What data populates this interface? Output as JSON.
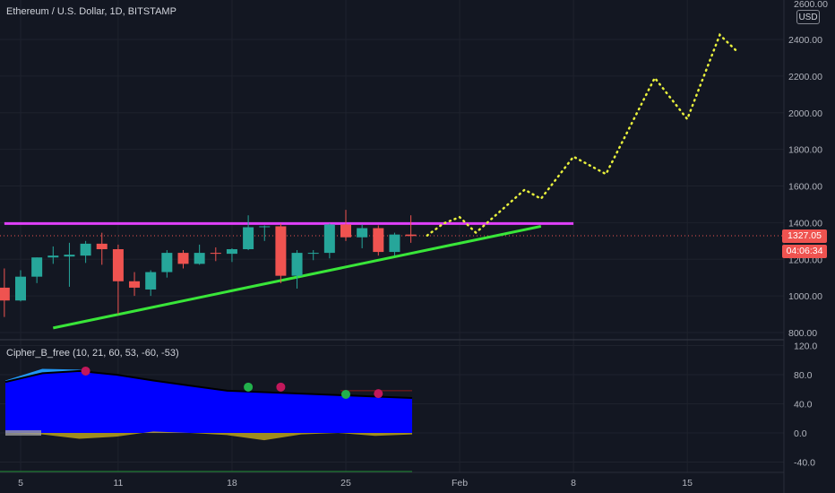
{
  "header": {
    "symbol_title": "Ethereum / U.S. Dollar, 1D, BITSTAMP",
    "currency_button": "USD",
    "top_partial_label": "2600.00"
  },
  "price_axis": {
    "ticks": [
      "2400.00",
      "2200.00",
      "2000.00",
      "1800.00",
      "1600.00",
      "1400.00",
      "1200.00",
      "1000.00",
      "800.00"
    ],
    "current_price": "1327.05",
    "countdown": "04:06:34"
  },
  "indicator": {
    "title": "Cipher_B_free (10, 21, 60, 53, -60, -53)",
    "ticks": [
      "120.0",
      "80.0",
      "40.0",
      "0.0",
      "-40.0"
    ]
  },
  "time_axis": {
    "ticks": [
      "5",
      "11",
      "18",
      "25",
      "Feb",
      "8",
      "15"
    ]
  },
  "colors": {
    "background": "#131722",
    "up_candle": "#26a69a",
    "down_candle": "#ef5350",
    "resistance_line": "#e040fb",
    "trend_line": "#39e639",
    "projection": "#e8f03c",
    "wave_blue": "#0000ff",
    "wave_light": "#2196f3",
    "dot_red": "#c2185b",
    "dot_green": "#22b14c"
  },
  "chart_data": {
    "type": "candlestick",
    "ylim": [
      780,
      2620
    ],
    "candles": [
      {
        "date": "Jan 4",
        "open": 1045,
        "high": 1150,
        "low": 885,
        "close": 975
      },
      {
        "date": "Jan 5",
        "open": 975,
        "high": 1140,
        "low": 970,
        "close": 1105
      },
      {
        "date": "Jan 6",
        "open": 1105,
        "high": 1210,
        "low": 1070,
        "close": 1210
      },
      {
        "date": "Jan 7",
        "open": 1210,
        "high": 1270,
        "low": 1175,
        "close": 1220
      },
      {
        "date": "Jan 8",
        "open": 1215,
        "high": 1290,
        "low": 1050,
        "close": 1225
      },
      {
        "date": "Jan 9",
        "open": 1220,
        "high": 1300,
        "low": 1180,
        "close": 1285
      },
      {
        "date": "Jan 10",
        "open": 1285,
        "high": 1345,
        "low": 1170,
        "close": 1255
      },
      {
        "date": "Jan 11",
        "open": 1255,
        "high": 1280,
        "low": 900,
        "close": 1080
      },
      {
        "date": "Jan 12",
        "open": 1080,
        "high": 1130,
        "low": 1000,
        "close": 1045
      },
      {
        "date": "Jan 13",
        "open": 1035,
        "high": 1140,
        "low": 1000,
        "close": 1130
      },
      {
        "date": "Jan 14",
        "open": 1130,
        "high": 1250,
        "low": 1100,
        "close": 1235
      },
      {
        "date": "Jan 15",
        "open": 1235,
        "high": 1250,
        "low": 1150,
        "close": 1175
      },
      {
        "date": "Jan 16",
        "open": 1175,
        "high": 1280,
        "low": 1170,
        "close": 1235
      },
      {
        "date": "Jan 17",
        "open": 1235,
        "high": 1265,
        "low": 1190,
        "close": 1230
      },
      {
        "date": "Jan 18",
        "open": 1230,
        "high": 1260,
        "low": 1185,
        "close": 1255
      },
      {
        "date": "Jan 19",
        "open": 1255,
        "high": 1440,
        "low": 1250,
        "close": 1375
      },
      {
        "date": "Jan 20",
        "open": 1375,
        "high": 1385,
        "low": 1300,
        "close": 1380
      },
      {
        "date": "Jan 21",
        "open": 1380,
        "high": 1395,
        "low": 1070,
        "close": 1110
      },
      {
        "date": "Jan 22",
        "open": 1110,
        "high": 1250,
        "low": 1040,
        "close": 1235
      },
      {
        "date": "Jan 23",
        "open": 1235,
        "high": 1250,
        "low": 1195,
        "close": 1235
      },
      {
        "date": "Jan 24",
        "open": 1235,
        "high": 1395,
        "low": 1205,
        "close": 1390
      },
      {
        "date": "Jan 25",
        "open": 1390,
        "high": 1470,
        "low": 1300,
        "close": 1320
      },
      {
        "date": "Jan 26",
        "open": 1320,
        "high": 1390,
        "low": 1260,
        "close": 1370
      },
      {
        "date": "Jan 27",
        "open": 1370,
        "high": 1385,
        "low": 1220,
        "close": 1240
      },
      {
        "date": "Jan 28",
        "open": 1240,
        "high": 1345,
        "low": 1220,
        "close": 1335
      },
      {
        "date": "Jan 29",
        "open": 1335,
        "high": 1440,
        "low": 1290,
        "close": 1327
      }
    ],
    "resistance": {
      "price": 1395,
      "from": "Jan 4",
      "to": "Feb 8"
    },
    "trendline": {
      "from_date": "Jan 7",
      "from_price": 825,
      "to_date": "Feb 6",
      "to_price": 1380
    },
    "projection": {
      "points": [
        {
          "date": "Jan 30",
          "price": 1330
        },
        {
          "date": "Jan 31",
          "price": 1395
        },
        {
          "date": "Feb 1",
          "price": 1430
        },
        {
          "date": "Feb 2",
          "price": 1345
        },
        {
          "date": "Feb 5",
          "price": 1580
        },
        {
          "date": "Feb 6",
          "price": 1530
        },
        {
          "date": "Feb 8",
          "price": 1760
        },
        {
          "date": "Feb 10",
          "price": 1665
        },
        {
          "date": "Feb 13",
          "price": 2190
        },
        {
          "date": "Feb 15",
          "price": 1965
        },
        {
          "date": "Feb 17",
          "price": 2425
        },
        {
          "date": "Feb 18",
          "price": 2340
        }
      ]
    },
    "oscillator": {
      "ylim": [
        -50,
        125
      ],
      "series": [
        {
          "values": [
            70,
            82,
            85,
            80,
            72,
            65,
            58,
            56,
            54,
            52,
            50,
            48
          ]
        },
        {
          "values": [
            0,
            -2,
            -8,
            -5,
            2,
            0,
            -3,
            -10,
            -2,
            0,
            -4,
            -2
          ]
        }
      ],
      "dots": [
        {
          "date": "Jan 9",
          "value": 85,
          "color": "red"
        },
        {
          "date": "Jan 19",
          "value": 63,
          "color": "green"
        },
        {
          "date": "Jan 21",
          "value": 63,
          "color": "red"
        },
        {
          "date": "Jan 25",
          "value": 53,
          "color": "green"
        },
        {
          "date": "Jan 27",
          "value": 54,
          "color": "red"
        }
      ]
    }
  }
}
